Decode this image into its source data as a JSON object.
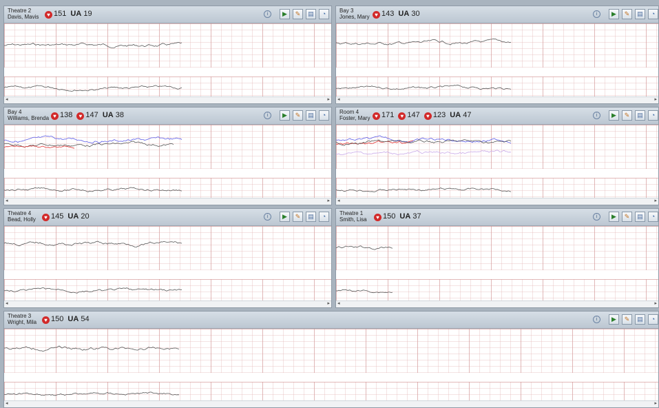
{
  "panels": [
    {
      "location": "Theatre 2",
      "patient": "Davis, Mavis",
      "hrs": [
        "151"
      ],
      "ua_label": "UA",
      "ua": "19"
    },
    {
      "location": "Bay 3",
      "patient": "Jones, Mary",
      "hrs": [
        "143"
      ],
      "ua_label": "UA",
      "ua": "30"
    },
    {
      "location": "Bay 4",
      "patient": "Williams, Brenda",
      "hrs": [
        "138",
        "147"
      ],
      "ua_label": "UA",
      "ua": "38"
    },
    {
      "location": "Room 4",
      "patient": "Foster, Mary",
      "hrs": [
        "171",
        "147",
        "123"
      ],
      "ua_label": "UA",
      "ua": "47"
    },
    {
      "location": "Theatre 4",
      "patient": "Bead, Holly",
      "hrs": [
        "145"
      ],
      "ua_label": "UA",
      "ua": "20"
    },
    {
      "location": "Theatre 1",
      "patient": "Smith, Lisa",
      "hrs": [
        "150"
      ],
      "ua_label": "UA",
      "ua": "37"
    },
    {
      "location": "Theatre 3",
      "patient": "Wright, Mila",
      "hrs": [
        "150"
      ],
      "ua_label": "UA",
      "ua": "54"
    }
  ],
  "icons": {
    "info": "info-icon",
    "play": "play-icon",
    "marker": "marker-icon",
    "note": "note-icon",
    "zoom": "zoom-icon",
    "heart": "heart-icon"
  },
  "colors": {
    "fhr1": "#555555",
    "fhr2": "#5a5ae6",
    "fhr3": "#e03030",
    "fhr4": "#c8a8e8",
    "toco": "#555555",
    "heart": "#d22a2a",
    "play": "#2a9a2a"
  },
  "scroll": {
    "left": "◂",
    "right": "▸"
  }
}
